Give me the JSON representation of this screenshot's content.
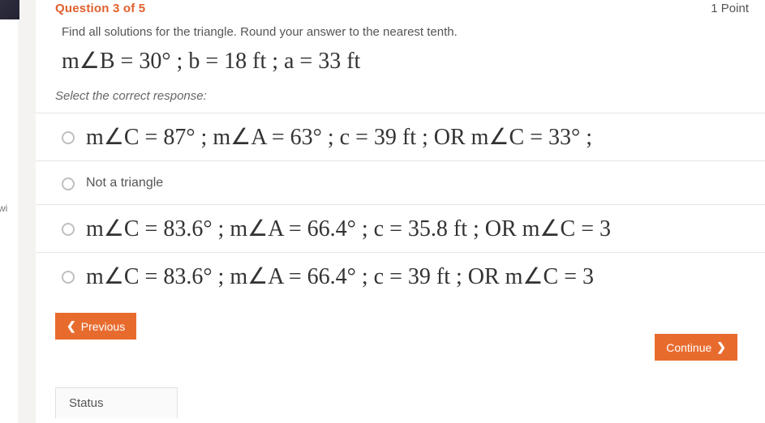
{
  "left": {
    "wi": "wi"
  },
  "header": {
    "question_num": "Question 3 of 5",
    "points": "1 Point"
  },
  "prompt": "Find all solutions for the triangle. Round your answer to the nearest tenth.",
  "equation": "m∠B = 30° ;  b = 18 ft ;  a = 33 ft",
  "select_label": "Select the correct response:",
  "options": {
    "a": "m∠C = 87° ;  m∠A = 63° ;  c = 39 ft ;   OR   m∠C = 33° ;",
    "b": "Not a triangle",
    "c": "m∠C = 83.6° ;  m∠A = 66.4° ;  c = 35.8 ft ;  OR  m∠C = 3",
    "d": "m∠C = 83.6° ;  m∠A = 66.4° ;  c = 39 ft ;   OR   m∠C = 3"
  },
  "buttons": {
    "previous": "Previous",
    "continue": "Continue"
  },
  "status": "Status",
  "colors": {
    "accent": "#e86b2e",
    "text": "#444444",
    "muted": "#666666",
    "divider": "#e8e5e2",
    "background": "#ffffff"
  }
}
